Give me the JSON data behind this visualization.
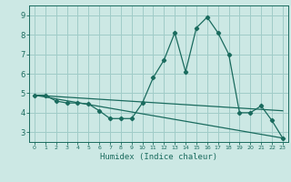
{
  "title": "",
  "xlabel": "Humidex (Indice chaleur)",
  "background_color": "#cce8e4",
  "grid_color": "#a0ccc8",
  "line_color": "#1a6b5e",
  "xlim": [
    -0.5,
    23.5
  ],
  "ylim": [
    2.5,
    9.5
  ],
  "xticks": [
    0,
    1,
    2,
    3,
    4,
    5,
    6,
    7,
    8,
    9,
    10,
    11,
    12,
    13,
    14,
    15,
    16,
    17,
    18,
    19,
    20,
    21,
    22,
    23
  ],
  "yticks": [
    3,
    4,
    5,
    6,
    7,
    8,
    9
  ],
  "line1_x": [
    0,
    1,
    2,
    3,
    4,
    5,
    6,
    7,
    8,
    9,
    10,
    11,
    12,
    13,
    14,
    15,
    16,
    17,
    18,
    19,
    20,
    21,
    22,
    23
  ],
  "line1_y": [
    4.9,
    4.9,
    4.6,
    4.5,
    4.5,
    4.45,
    4.1,
    3.7,
    3.7,
    3.7,
    4.5,
    5.8,
    6.7,
    8.1,
    6.1,
    8.35,
    8.9,
    8.1,
    7.0,
    4.0,
    4.0,
    4.35,
    3.6,
    2.7
  ],
  "line2_x": [
    0,
    23
  ],
  "line2_y": [
    4.9,
    2.7
  ],
  "line3_x": [
    0,
    23
  ],
  "line3_y": [
    4.9,
    4.1
  ]
}
